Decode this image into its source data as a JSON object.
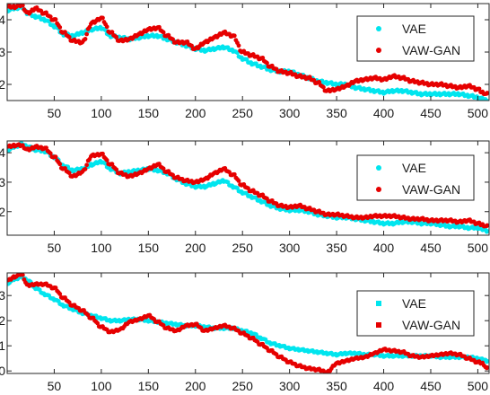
{
  "chart_data": [
    {
      "type": "scatter",
      "xlim": [
        0,
        512
      ],
      "ylim": [
        1.5,
        4.5
      ],
      "xticks": [
        "50",
        "100",
        "150",
        "200",
        "250",
        "300",
        "350",
        "400",
        "450",
        "500"
      ],
      "yticks": [
        "2",
        "3",
        "4"
      ],
      "legend_position": "top-right",
      "legend_markers": [
        "dot",
        "dot"
      ],
      "grid": false,
      "series": [
        {
          "name": "VAE",
          "color": "#00e5ee",
          "x": [
            1,
            8,
            15,
            22,
            30,
            40,
            50,
            60,
            70,
            80,
            90,
            100,
            110,
            120,
            130,
            140,
            150,
            160,
            170,
            180,
            190,
            200,
            210,
            220,
            230,
            240,
            250,
            260,
            270,
            280,
            290,
            300,
            310,
            320,
            330,
            340,
            350,
            360,
            370,
            380,
            390,
            400,
            410,
            420,
            430,
            440,
            450,
            460,
            470,
            480,
            490,
            500,
            505,
            510
          ],
          "y": [
            4.3,
            4.35,
            4.4,
            4.2,
            4.1,
            4.0,
            3.8,
            3.55,
            3.5,
            3.6,
            3.7,
            3.75,
            3.5,
            3.45,
            3.4,
            3.45,
            3.5,
            3.5,
            3.4,
            3.3,
            3.2,
            3.1,
            3.05,
            3.1,
            3.15,
            3.05,
            2.8,
            2.65,
            2.55,
            2.45,
            2.4,
            2.4,
            2.3,
            2.2,
            2.1,
            2.05,
            2.0,
            2.0,
            1.9,
            1.85,
            1.8,
            1.75,
            1.8,
            1.8,
            1.75,
            1.7,
            1.7,
            1.7,
            1.7,
            1.7,
            1.65,
            1.6,
            1.55,
            1.5
          ]
        },
        {
          "name": "VAW-GAN",
          "color": "#e60000",
          "x": [
            1,
            8,
            15,
            22,
            30,
            40,
            50,
            60,
            70,
            80,
            90,
            100,
            110,
            120,
            130,
            140,
            150,
            160,
            170,
            180,
            190,
            200,
            210,
            220,
            230,
            240,
            250,
            260,
            270,
            280,
            290,
            300,
            310,
            320,
            330,
            340,
            350,
            360,
            370,
            380,
            390,
            400,
            410,
            420,
            430,
            440,
            450,
            460,
            470,
            480,
            490,
            500,
            505,
            510
          ],
          "y": [
            4.4,
            4.4,
            4.45,
            4.2,
            4.35,
            4.2,
            4.0,
            3.6,
            3.35,
            3.3,
            3.9,
            4.05,
            3.6,
            3.35,
            3.4,
            3.55,
            3.7,
            3.75,
            3.5,
            3.3,
            3.3,
            3.1,
            3.3,
            3.45,
            3.6,
            3.5,
            3.0,
            2.9,
            2.8,
            2.55,
            2.4,
            2.35,
            2.25,
            2.2,
            2.05,
            1.8,
            1.85,
            1.95,
            2.1,
            2.15,
            2.2,
            2.15,
            2.25,
            2.2,
            2.1,
            2.05,
            2.0,
            2.0,
            1.95,
            1.9,
            1.95,
            1.85,
            1.75,
            1.7
          ]
        }
      ]
    },
    {
      "type": "scatter",
      "xlim": [
        0,
        512
      ],
      "ylim": [
        1.2,
        4.4
      ],
      "xticks": [
        "50",
        "100",
        "150",
        "200",
        "250",
        "300",
        "350",
        "400",
        "450",
        "500"
      ],
      "yticks": [
        "2",
        "3",
        "4"
      ],
      "legend_position": "top-right",
      "legend_markers": [
        "dot",
        "dot"
      ],
      "grid": false,
      "series": [
        {
          "name": "VAE",
          "color": "#00e5ee",
          "x": [
            1,
            8,
            15,
            22,
            30,
            40,
            50,
            60,
            70,
            80,
            90,
            100,
            110,
            120,
            130,
            140,
            150,
            160,
            170,
            180,
            190,
            200,
            210,
            220,
            230,
            240,
            250,
            260,
            270,
            280,
            290,
            300,
            310,
            320,
            330,
            340,
            350,
            360,
            370,
            380,
            390,
            400,
            410,
            420,
            430,
            440,
            450,
            460,
            470,
            480,
            490,
            500,
            505,
            510
          ],
          "y": [
            4.1,
            4.2,
            4.3,
            4.2,
            4.1,
            4.05,
            3.85,
            3.55,
            3.4,
            3.45,
            3.6,
            3.7,
            3.45,
            3.3,
            3.35,
            3.4,
            3.45,
            3.4,
            3.3,
            3.1,
            2.95,
            2.85,
            2.85,
            2.95,
            3.05,
            2.85,
            2.65,
            2.5,
            2.35,
            2.2,
            2.1,
            2.05,
            2.05,
            2.0,
            1.9,
            1.85,
            1.8,
            1.8,
            1.75,
            1.7,
            1.65,
            1.6,
            1.6,
            1.65,
            1.65,
            1.6,
            1.6,
            1.55,
            1.5,
            1.5,
            1.45,
            1.45,
            1.4,
            1.35
          ]
        },
        {
          "name": "VAW-GAN",
          "color": "#e60000",
          "x": [
            1,
            8,
            15,
            22,
            30,
            40,
            50,
            60,
            70,
            80,
            90,
            100,
            110,
            120,
            130,
            140,
            150,
            160,
            170,
            180,
            190,
            200,
            210,
            220,
            230,
            240,
            250,
            260,
            270,
            280,
            290,
            300,
            310,
            320,
            330,
            340,
            350,
            360,
            370,
            380,
            390,
            400,
            410,
            420,
            430,
            440,
            450,
            460,
            470,
            480,
            490,
            500,
            505,
            510
          ],
          "y": [
            4.2,
            4.25,
            4.25,
            4.1,
            4.2,
            4.15,
            3.85,
            3.45,
            3.2,
            3.35,
            3.9,
            3.95,
            3.6,
            3.3,
            3.2,
            3.3,
            3.45,
            3.6,
            3.35,
            3.15,
            3.05,
            3.0,
            3.1,
            3.3,
            3.45,
            3.25,
            2.9,
            2.7,
            2.55,
            2.35,
            2.2,
            2.15,
            2.2,
            2.1,
            2.0,
            1.9,
            1.9,
            1.85,
            1.8,
            1.8,
            1.85,
            1.85,
            1.85,
            1.8,
            1.75,
            1.75,
            1.7,
            1.7,
            1.7,
            1.65,
            1.7,
            1.6,
            1.55,
            1.5
          ]
        }
      ]
    },
    {
      "type": "scatter",
      "xlim": [
        0,
        512
      ],
      "ylim": [
        -0.1,
        3.9
      ],
      "xticks": [
        "50",
        "100",
        "150",
        "200",
        "250",
        "300",
        "350",
        "400",
        "450",
        "500"
      ],
      "yticks": [
        "0",
        "1",
        "2",
        "3"
      ],
      "legend_position": "top-right",
      "legend_markers": [
        "square",
        "square"
      ],
      "grid": false,
      "series": [
        {
          "name": "VAE",
          "color": "#00e5ee",
          "x": [
            1,
            8,
            15,
            22,
            30,
            40,
            50,
            60,
            70,
            80,
            90,
            100,
            110,
            120,
            130,
            140,
            150,
            160,
            170,
            180,
            190,
            200,
            210,
            220,
            230,
            240,
            250,
            260,
            270,
            280,
            290,
            300,
            310,
            320,
            330,
            340,
            350,
            360,
            370,
            380,
            390,
            400,
            410,
            420,
            430,
            440,
            450,
            460,
            470,
            480,
            490,
            500,
            505,
            510
          ],
          "y": [
            3.5,
            3.65,
            3.75,
            3.6,
            3.3,
            3.05,
            2.85,
            2.6,
            2.45,
            2.3,
            2.2,
            2.1,
            2.0,
            2.0,
            2.05,
            2.05,
            2.0,
            1.95,
            1.9,
            1.85,
            1.8,
            1.8,
            1.75,
            1.7,
            1.7,
            1.7,
            1.6,
            1.5,
            1.3,
            1.1,
            1.0,
            0.9,
            0.85,
            0.8,
            0.75,
            0.7,
            0.65,
            0.7,
            0.7,
            0.65,
            0.65,
            0.6,
            0.6,
            0.6,
            0.6,
            0.6,
            0.6,
            0.55,
            0.55,
            0.55,
            0.55,
            0.5,
            0.45,
            0.4
          ]
        },
        {
          "name": "VAW-GAN",
          "color": "#e60000",
          "x": [
            1,
            8,
            15,
            22,
            30,
            40,
            50,
            60,
            70,
            80,
            90,
            100,
            110,
            120,
            130,
            140,
            150,
            160,
            170,
            180,
            190,
            200,
            210,
            220,
            230,
            240,
            250,
            260,
            270,
            280,
            290,
            300,
            310,
            320,
            330,
            340,
            350,
            360,
            370,
            380,
            390,
            400,
            410,
            420,
            430,
            440,
            450,
            460,
            470,
            480,
            490,
            500,
            505,
            510
          ],
          "y": [
            3.6,
            3.75,
            3.85,
            3.4,
            3.45,
            3.45,
            3.3,
            2.9,
            2.6,
            2.4,
            2.1,
            1.75,
            1.55,
            1.65,
            1.95,
            2.05,
            2.2,
            1.95,
            1.7,
            1.6,
            1.8,
            1.85,
            1.6,
            1.7,
            1.8,
            1.7,
            1.5,
            1.3,
            1.05,
            0.8,
            0.55,
            0.35,
            0.2,
            0.1,
            0.05,
            -0.05,
            0.3,
            0.4,
            0.5,
            0.55,
            0.7,
            0.85,
            0.8,
            0.75,
            0.6,
            0.55,
            0.6,
            0.65,
            0.7,
            0.65,
            0.5,
            0.35,
            0.3,
            0.1
          ]
        }
      ]
    }
  ]
}
